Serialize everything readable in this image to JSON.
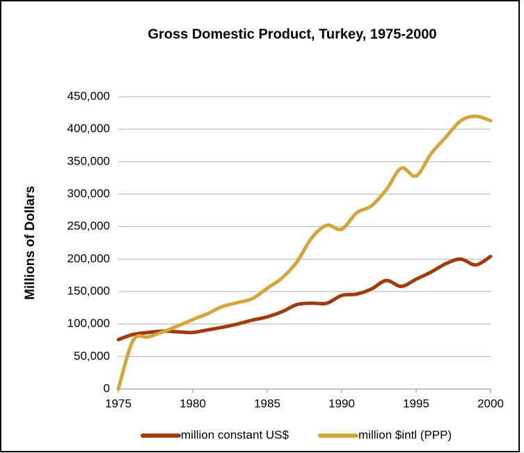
{
  "chart_data": {
    "type": "line",
    "title": "Gross Domestic Product, Turkey, 1975-2000",
    "y_label": "Millions of Dollars",
    "x": [
      1975,
      1976,
      1977,
      1978,
      1979,
      1980,
      1981,
      1982,
      1983,
      1984,
      1985,
      1986,
      1987,
      1988,
      1989,
      1990,
      1991,
      1992,
      1993,
      1994,
      1995,
      1996,
      1997,
      1998,
      1999,
      2000
    ],
    "series": [
      {
        "name": "million constant US$",
        "color": "#a23b0c",
        "values": [
          76000,
          84000,
          87000,
          89000,
          88000,
          87000,
          91000,
          95000,
          100000,
          106000,
          111000,
          119000,
          130000,
          132000,
          132000,
          144000,
          146000,
          154000,
          167000,
          158000,
          169000,
          180000,
          193000,
          200000,
          191000,
          204000
        ]
      },
      {
        "name": "million $intl (PPP)",
        "color": "#d4a53c",
        "values": [
          0,
          75000,
          80000,
          88000,
          97000,
          107000,
          116000,
          127000,
          133000,
          139000,
          155000,
          171000,
          196000,
          233000,
          252000,
          246000,
          271000,
          282000,
          307000,
          340000,
          328000,
          362000,
          388000,
          413000,
          420000,
          413000
        ]
      }
    ],
    "xlim": [
      1975,
      2000
    ],
    "xticks": [
      1975,
      1980,
      1985,
      1990,
      1995,
      2000
    ],
    "ylim": [
      0,
      450000
    ],
    "yticks": [
      0,
      {
        "value": 50000,
        "label": "50,000"
      },
      {
        "value": 100000,
        "label": "100,000"
      },
      {
        "value": 150000,
        "label": "150,000"
      },
      {
        "value": 200000,
        "label": "200,000"
      },
      {
        "value": 250000,
        "label": "250,000"
      },
      {
        "value": 300000,
        "label": "300,000"
      },
      {
        "value": 350000,
        "label": "350,000"
      },
      {
        "value": 400000,
        "label": "400,000"
      },
      {
        "value": 450000,
        "label": "450,000"
      }
    ],
    "grid": true,
    "legend": "bottom",
    "smooth": true
  }
}
